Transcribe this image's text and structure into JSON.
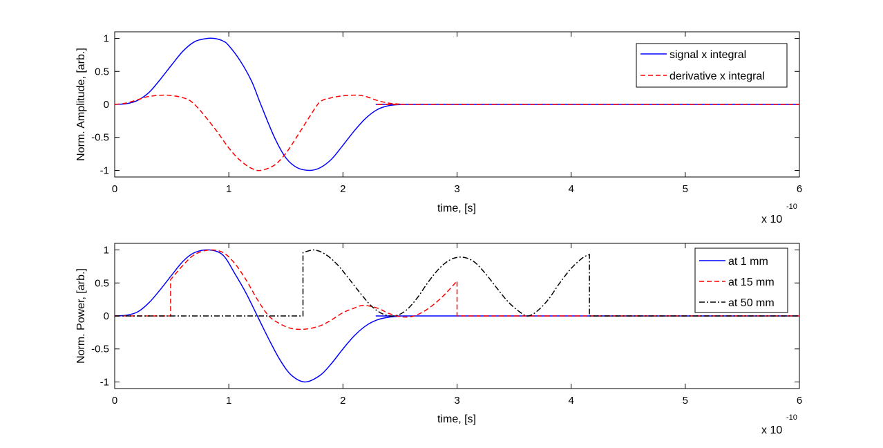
{
  "chart_data": [
    {
      "type": "line",
      "xlabel": "time, [s]",
      "ylabel": "Norm. Amplitude, [arb.]",
      "x_multiplier": "x 10",
      "x_multiplier_exp": "-10",
      "xlim": [
        0,
        6
      ],
      "ylim": [
        -1.1,
        1.1
      ],
      "xticks": [
        "0",
        "1",
        "2",
        "3",
        "4",
        "5",
        "6"
      ],
      "yticks": [
        "-1",
        "-0.5",
        "0",
        "0.5",
        "1"
      ],
      "grid": false,
      "legend_position": "top-right",
      "series": [
        {
          "name": "signal x integral",
          "color": "#0000ff",
          "style": "solid",
          "x": [
            0,
            0.1,
            0.2,
            0.3,
            0.4,
            0.5,
            0.6,
            0.7,
            0.8,
            0.87,
            0.95,
            1.0,
            1.1,
            1.2,
            1.28,
            1.4,
            1.5,
            1.6,
            1.71,
            1.8,
            1.9,
            2.0,
            2.1,
            2.2,
            2.3,
            2.4,
            2.5,
            2.56,
            6
          ],
          "y": [
            0,
            0.01,
            0.06,
            0.18,
            0.38,
            0.6,
            0.81,
            0.95,
            0.997,
            1.0,
            0.96,
            0.89,
            0.66,
            0.35,
            0.0,
            -0.5,
            -0.81,
            -0.96,
            -1.0,
            -0.96,
            -0.83,
            -0.62,
            -0.4,
            -0.21,
            -0.08,
            -0.02,
            -0.002,
            0,
            0
          ]
        },
        {
          "name": "derivative x integral",
          "color": "#ff0000",
          "style": "dashed",
          "x": [
            0,
            0.1,
            0.2,
            0.3,
            0.45,
            0.6,
            0.7,
            0.87,
            1.0,
            1.1,
            1.2,
            1.28,
            1.4,
            1.5,
            1.6,
            1.71,
            1.8,
            1.9,
            2.0,
            2.12,
            2.2,
            2.3,
            2.4,
            2.5,
            2.56,
            6
          ],
          "y": [
            0,
            0.02,
            0.07,
            0.12,
            0.14,
            0.1,
            0.0,
            -0.35,
            -0.66,
            -0.85,
            -0.97,
            -1.0,
            -0.92,
            -0.74,
            -0.48,
            -0.18,
            0.04,
            0.1,
            0.13,
            0.14,
            0.12,
            0.06,
            0.02,
            0.004,
            0,
            0
          ]
        }
      ]
    },
    {
      "type": "line",
      "xlabel": "time, [s]",
      "ylabel": "Norm. Power, [arb.]",
      "x_multiplier": "x 10",
      "x_multiplier_exp": "-10",
      "xlim": [
        0,
        6
      ],
      "ylim": [
        -1.1,
        1.1
      ],
      "xticks": [
        "0",
        "1",
        "2",
        "3",
        "4",
        "5",
        "6"
      ],
      "yticks": [
        "-1",
        "-0.5",
        "0",
        "0.5",
        "1"
      ],
      "grid": false,
      "legend_position": "top-right",
      "series": [
        {
          "name": "at 1 mm",
          "color": "#0000ff",
          "style": "solid",
          "x": [
            0,
            0.1,
            0.2,
            0.3,
            0.4,
            0.5,
            0.6,
            0.7,
            0.83,
            0.95,
            1.05,
            1.15,
            1.25,
            1.35,
            1.45,
            1.55,
            1.67,
            1.8,
            1.9,
            2.0,
            2.1,
            2.2,
            2.3,
            2.4,
            2.5,
            2.56,
            6
          ],
          "y": [
            0,
            0.01,
            0.06,
            0.2,
            0.4,
            0.62,
            0.83,
            0.96,
            1.0,
            0.92,
            0.65,
            0.35,
            0.0,
            -0.35,
            -0.67,
            -0.9,
            -1.0,
            -0.9,
            -0.72,
            -0.5,
            -0.3,
            -0.15,
            -0.06,
            -0.02,
            -0.003,
            0,
            0
          ]
        },
        {
          "name": "at 15 mm",
          "color": "#ff0000",
          "style": "dashed",
          "x": [
            0,
            0.49,
            0.49,
            0.6,
            0.7,
            0.83,
            0.95,
            1.05,
            1.15,
            1.25,
            1.35,
            1.45,
            1.55,
            1.67,
            1.8,
            1.9,
            2.0,
            2.1,
            2.18,
            2.3,
            2.4,
            2.5,
            2.6,
            2.7,
            2.8,
            2.9,
            3.0,
            3.0,
            6
          ],
          "y": [
            0,
            0,
            0.55,
            0.77,
            0.93,
            1.0,
            0.96,
            0.8,
            0.55,
            0.25,
            0.0,
            -0.12,
            -0.19,
            -0.2,
            -0.15,
            -0.06,
            0.05,
            0.12,
            0.16,
            0.12,
            0.04,
            -0.01,
            -0.01,
            0.06,
            0.18,
            0.34,
            0.53,
            0,
            0
          ]
        },
        {
          "name": "at 50 mm",
          "color": "#000000",
          "style": "dashdot",
          "x": [
            0,
            1.65,
            1.65,
            1.75,
            1.85,
            1.95,
            2.05,
            2.15,
            2.25,
            2.35,
            2.45,
            2.55,
            2.65,
            2.75,
            2.85,
            2.95,
            3.05,
            3.15,
            3.25,
            3.35,
            3.45,
            3.55,
            3.62,
            3.7,
            3.8,
            3.9,
            4.0,
            4.1,
            4.16,
            4.16,
            6
          ],
          "y": [
            0,
            0,
            0.96,
            1.0,
            0.93,
            0.78,
            0.57,
            0.35,
            0.15,
            0.03,
            0.0,
            0.08,
            0.27,
            0.52,
            0.73,
            0.86,
            0.89,
            0.82,
            0.64,
            0.42,
            0.21,
            0.06,
            0.0,
            0.07,
            0.25,
            0.5,
            0.72,
            0.88,
            0.93,
            0,
            0
          ]
        }
      ]
    }
  ]
}
